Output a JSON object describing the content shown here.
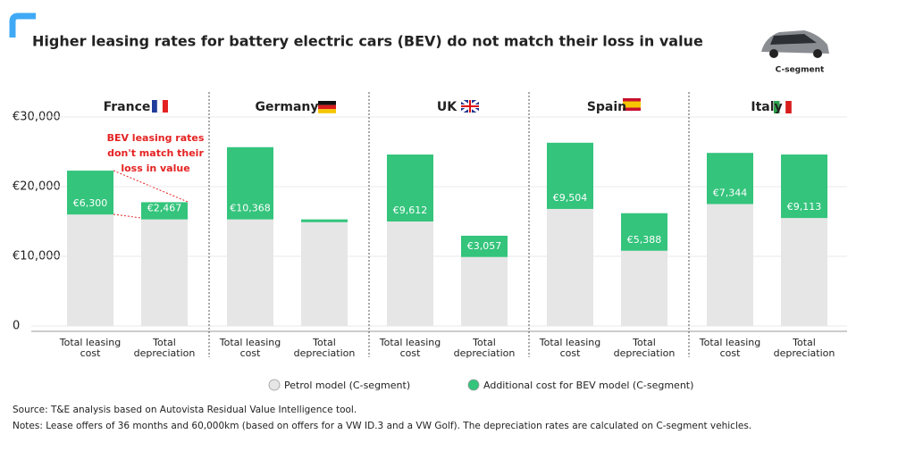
{
  "chart_data": {
    "type": "bar",
    "stacked": true,
    "title": "Higher leasing rates for battery electric cars (BEV) do not match their loss in value",
    "corner_label": "C-segment",
    "groups": [
      "France",
      "Germany",
      "UK",
      "Spain",
      "Italy"
    ],
    "categories": [
      "Total leasing cost",
      "Total depreciation",
      "Total leasing cost",
      "Total depreciation",
      "Total leasing cost",
      "Total depreciation",
      "Total leasing cost",
      "Total depreciation",
      "Total leasing cost",
      "Total depreciation"
    ],
    "series": [
      {
        "name": "Petrol model (C-segment)",
        "color": "#e6e6e6",
        "values": [
          16000,
          15300,
          15300,
          14900,
          15000,
          9900,
          16800,
          10800,
          17500,
          15500
        ]
      },
      {
        "name": "Additional cost for BEV model (C-segment)",
        "color": "#34c47c",
        "values": [
          6300,
          2467,
          10368,
          400,
          9612,
          3057,
          9504,
          5388,
          7344,
          9113
        ],
        "value_labels": [
          "€6,300",
          "€2,467",
          "€10,368",
          null,
          "€9,612",
          "€3,057",
          "€9,504",
          "€5,388",
          "€7,344",
          "€9,113"
        ]
      }
    ],
    "ylim": [
      0,
      30000
    ],
    "yticks": [
      0,
      {
        "value": 10000,
        "label": "€10,000"
      },
      {
        "value": 20000,
        "label": "€20,000"
      },
      {
        "value": 30000,
        "label": "€30,000"
      }
    ],
    "grid": true,
    "annotation": "BEV leasing rates don't match their loss in value",
    "source": "Source: T&E analysis based on Autovista Residual Value Intelligence tool.",
    "notes": "Notes: Lease offers of 36 months and 60,000km (based on offers for a VW ID.3 and a VW Golf). The depreciation rates are calculated on C-segment vehicles."
  }
}
